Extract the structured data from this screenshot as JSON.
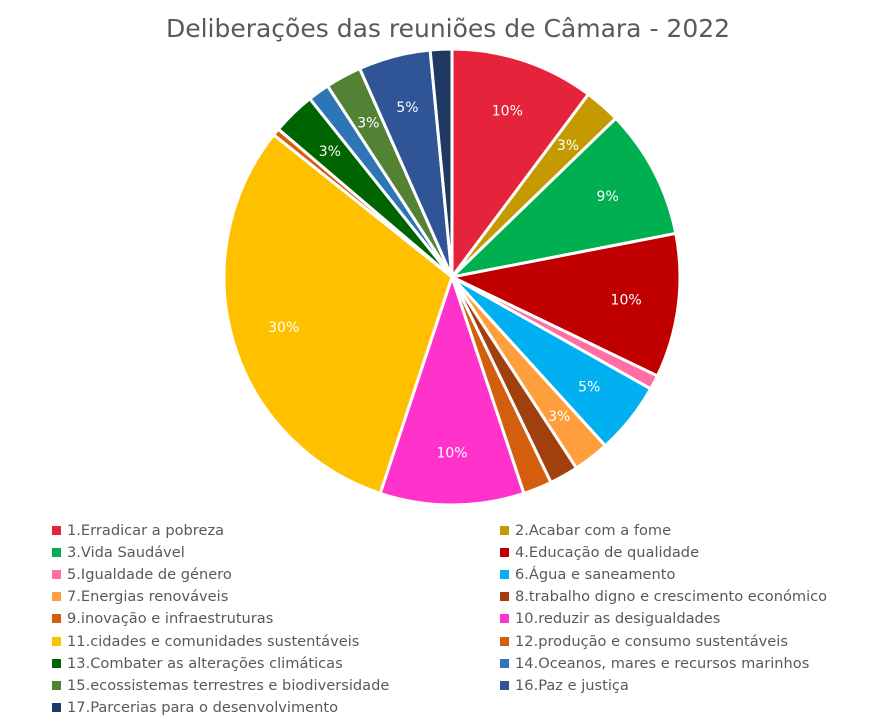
{
  "chart_data": {
    "type": "pie",
    "title": "Deliberações das reuniões de Câmara - 2022",
    "legend_position": "bottom",
    "slices": [
      {
        "label": "1.Erradicar a pobreza",
        "value": 10,
        "data_label": "10%",
        "color": "#E5243B"
      },
      {
        "label": "2.Acabar com a fome",
        "value": 2.5,
        "data_label": "3%",
        "color": "#C49A00"
      },
      {
        "label": "3.Vida Saudável",
        "value": 9,
        "data_label": "9%",
        "color": "#00B050"
      },
      {
        "label": "4.Educação de qualidade",
        "value": 10,
        "data_label": "10%",
        "color": "#C00000"
      },
      {
        "label": "5.Igualdade de género",
        "value": 1,
        "data_label": "",
        "color": "#FF6FA3"
      },
      {
        "label": "6.Água e saneamento",
        "value": 5,
        "data_label": "5%",
        "color": "#00B0F0"
      },
      {
        "label": "7.Energias renováveis",
        "value": 2.5,
        "data_label": "3%",
        "color": "#FF9E3D"
      },
      {
        "label": "8.trabalho digno e crescimento económico",
        "value": 2,
        "data_label": "",
        "color": "#A0410D"
      },
      {
        "label": "9.inovação e infraestruturas",
        "value": 2,
        "data_label": "",
        "color": "#D35E0E"
      },
      {
        "label": "10.reduzir as desigualdades",
        "value": 10,
        "data_label": "10%",
        "color": "#FF33CC"
      },
      {
        "label": "11.cidades e comunidades sustentáveis",
        "value": 30,
        "data_label": "30%",
        "color": "#FFC000"
      },
      {
        "label": "12.produção e consumo sustentáveis",
        "value": 0.5,
        "data_label": "",
        "color": "#D35E0E"
      },
      {
        "label": "13.Combater as alterações climáticas",
        "value": 3,
        "data_label": "3%",
        "color": "#006400"
      },
      {
        "label": "14.Oceanos, mares e recursos marinhos",
        "value": 1.5,
        "data_label": "",
        "color": "#2E75B6"
      },
      {
        "label": "15.ecossistemas terrestres e biodiversidade",
        "value": 2.5,
        "data_label": "3%",
        "color": "#548235"
      },
      {
        "label": "16.Paz e justiça",
        "value": 5,
        "data_label": "5%",
        "color": "#2F5597"
      },
      {
        "label": "17.Parcerias para o desenvolvimento",
        "value": 1.5,
        "data_label": "",
        "color": "#1F3864"
      }
    ]
  }
}
